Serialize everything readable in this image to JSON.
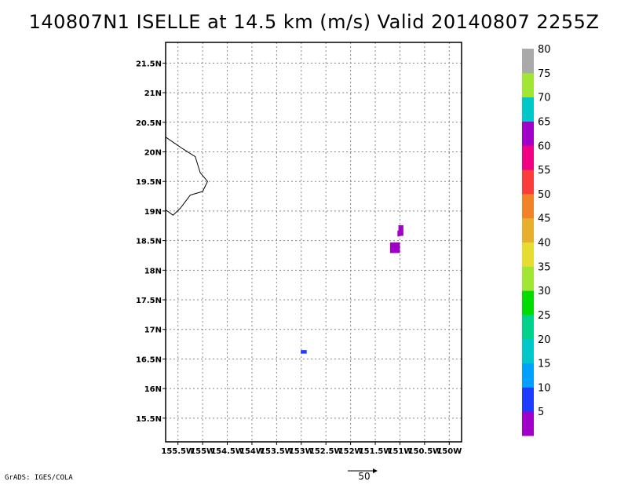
{
  "title": "140807N1 ISELLE at 14.5 km (m/s) Valid 20140807 2255Z",
  "credit": "GrADS: IGES/COLA",
  "vector_reference_label": "50",
  "chart_data": {
    "type": "heatmap",
    "title": "140807N1 ISELLE at 14.5 km (m/s) Valid 20140807 2255Z",
    "xlim": [
      -155.75,
      -149.75
    ],
    "ylim": [
      15.1,
      21.85
    ],
    "grid": true,
    "x_ticks": [
      -155.5,
      -155,
      -154.5,
      -154,
      -153.5,
      -153,
      -152.5,
      -152,
      -151.5,
      -151,
      -150.5,
      -150
    ],
    "x_tick_labels": [
      "155.5W",
      "155W",
      "154.5W",
      "154W",
      "153.5W",
      "153W",
      "152.5W",
      "152W",
      "151.5W",
      "151W",
      "150.5W",
      "150W"
    ],
    "y_ticks": [
      15.5,
      16,
      16.5,
      17,
      17.5,
      18,
      18.5,
      19,
      19.5,
      20,
      20.5,
      21,
      21.5
    ],
    "y_tick_labels": [
      "15.5N",
      "16N",
      "16.5N",
      "17N",
      "17.5N",
      "18N",
      "18.5N",
      "19N",
      "19.5N",
      "20N",
      "20.5N",
      "21N",
      "21.5N"
    ],
    "coastline": [
      [
        -155.75,
        20.25
      ],
      [
        -155.4,
        20.05
      ],
      [
        -155.15,
        19.92
      ],
      [
        -155.05,
        19.65
      ],
      [
        -154.9,
        19.5
      ],
      [
        -155.0,
        19.33
      ],
      [
        -155.25,
        19.27
      ],
      [
        -155.45,
        19.05
      ],
      [
        -155.6,
        18.93
      ],
      [
        -155.75,
        19.02
      ]
    ],
    "cells": [
      {
        "lon": -152.95,
        "lat": 16.62,
        "w": 0.12,
        "h": 0.06,
        "value": 10
      },
      {
        "lon": -151.1,
        "lat": 18.38,
        "w": 0.2,
        "h": 0.18,
        "value": 5
      },
      {
        "lon": -150.98,
        "lat": 18.67,
        "w": 0.1,
        "h": 0.18,
        "value": 5
      },
      {
        "lon": -151.03,
        "lat": 18.62,
        "w": 0.04,
        "h": 0.1,
        "value": 5
      }
    ],
    "colorbar": {
      "levels": [
        5,
        10,
        15,
        20,
        25,
        30,
        35,
        40,
        45,
        50,
        55,
        60,
        65,
        70,
        75,
        80
      ],
      "colors": [
        "#a000c8",
        "#1e3cff",
        "#00a0ff",
        "#00c8c8",
        "#00d28c",
        "#00dc00",
        "#a0e632",
        "#e6dc32",
        "#e6af2d",
        "#f08228",
        "#fa3c3c",
        "#f00082",
        "#a000c8",
        "#00c8c8",
        "#a0e632",
        "#aaaaaa"
      ],
      "labels": [
        "5",
        "10",
        "15",
        "20",
        "25",
        "30",
        "35",
        "40",
        "45",
        "50",
        "55",
        "60",
        "65",
        "70",
        "75",
        "80"
      ]
    }
  }
}
